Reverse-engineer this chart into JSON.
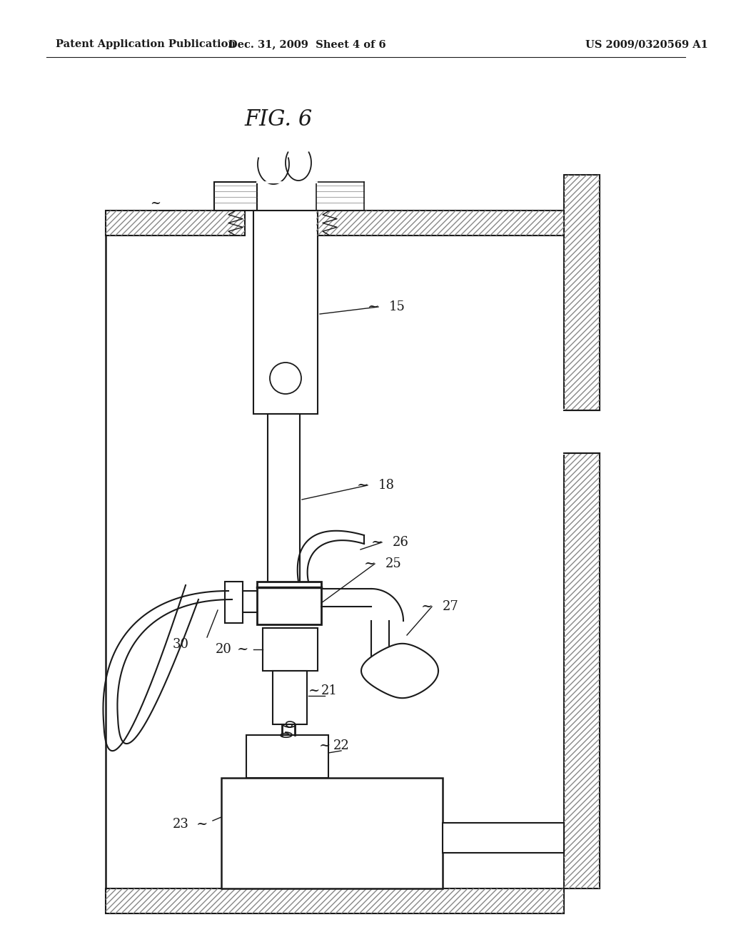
{
  "bg_color": "#ffffff",
  "lc": "#1a1a1a",
  "header_left": "Patent Application Publication",
  "header_mid": "Dec. 31, 2009  Sheet 4 of 6",
  "header_right": "US 2009/0320569 A1",
  "fig_title": "FIG. 6",
  "hatch_pattern": "////",
  "hatch_color": "#888888"
}
